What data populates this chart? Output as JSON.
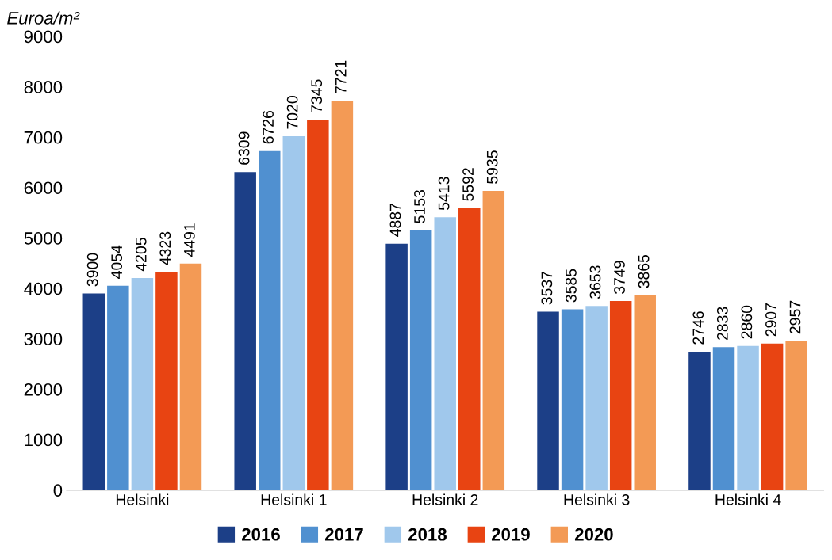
{
  "chart_data": {
    "type": "bar",
    "ylabel": "Euroa/m²",
    "categories": [
      "Helsinki",
      "Helsinki 1",
      "Helsinki 2",
      "Helsinki 3",
      "Helsinki 4"
    ],
    "series": [
      {
        "name": "2016",
        "color": "#1c3f87",
        "values": [
          3900,
          6309,
          4887,
          3537,
          2746
        ]
      },
      {
        "name": "2017",
        "color": "#5090d0",
        "values": [
          4054,
          6726,
          5153,
          3585,
          2833
        ]
      },
      {
        "name": "2018",
        "color": "#a0c8ec",
        "values": [
          4205,
          7020,
          5413,
          3653,
          2860
        ]
      },
      {
        "name": "2019",
        "color": "#e84412",
        "values": [
          4323,
          7345,
          5592,
          3749,
          2907
        ]
      },
      {
        "name": "2020",
        "color": "#f39a55",
        "values": [
          4491,
          7721,
          5935,
          3865,
          2957
        ]
      }
    ],
    "ylim": [
      0,
      9000
    ],
    "yticks": [
      0,
      1000,
      2000,
      3000,
      4000,
      5000,
      6000,
      7000,
      8000,
      9000
    ],
    "grid": false,
    "legend": "bottom",
    "data_labels": true
  }
}
